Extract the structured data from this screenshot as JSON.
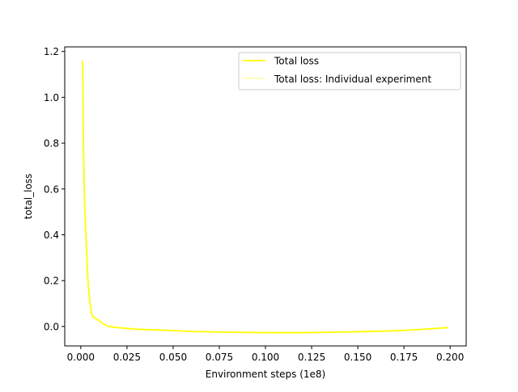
{
  "chart_data": {
    "type": "line",
    "xlabel": "Environment steps (1e8)",
    "ylabel": "total_loss",
    "xlim": [
      -0.0087,
      0.2087
    ],
    "ylim": [
      -0.085,
      1.22
    ],
    "x_ticks": [
      0.0,
      0.025,
      0.05,
      0.075,
      0.1,
      0.125,
      0.15,
      0.175,
      0.2
    ],
    "x_tick_labels": [
      "0.000",
      "0.025",
      "0.050",
      "0.075",
      "0.100",
      "0.125",
      "0.150",
      "0.175",
      "0.200"
    ],
    "y_ticks": [
      0.0,
      0.2,
      0.4,
      0.6,
      0.8,
      1.0,
      1.2
    ],
    "y_tick_labels": [
      "0.0",
      "0.2",
      "0.4",
      "0.6",
      "0.8",
      "1.0",
      "1.2"
    ],
    "grid": false,
    "legend_position": "top-right",
    "series": [
      {
        "name": "Total loss",
        "color": "#ffff00",
        "x": [
          0.001,
          0.0015,
          0.002,
          0.003,
          0.004,
          0.005,
          0.006,
          0.007,
          0.008,
          0.01,
          0.012,
          0.015,
          0.02,
          0.03,
          0.05,
          0.06,
          0.08,
          0.1,
          0.12,
          0.13,
          0.15,
          0.17,
          0.18,
          0.19,
          0.199
        ],
        "y": [
          1.16,
          0.75,
          0.55,
          0.35,
          0.18,
          0.1,
          0.05,
          0.04,
          0.035,
          0.025,
          0.012,
          0.0,
          -0.005,
          -0.012,
          -0.018,
          -0.022,
          -0.025,
          -0.027,
          -0.027,
          -0.026,
          -0.023,
          -0.019,
          -0.015,
          -0.01,
          -0.005
        ]
      },
      {
        "name": "Total loss: Individual experiment",
        "color": "#ffff00",
        "alpha": 0.4,
        "x": [
          0.001,
          0.0015,
          0.002,
          0.003,
          0.004,
          0.005,
          0.006,
          0.007,
          0.008,
          0.01,
          0.012,
          0.015,
          0.02,
          0.03,
          0.05,
          0.06,
          0.08,
          0.1,
          0.12,
          0.13,
          0.15,
          0.17,
          0.18,
          0.19,
          0.199
        ],
        "y": [
          1.16,
          0.75,
          0.55,
          0.35,
          0.18,
          0.1,
          0.05,
          0.04,
          0.035,
          0.025,
          0.012,
          0.0,
          -0.005,
          -0.012,
          -0.018,
          -0.022,
          -0.025,
          -0.027,
          -0.027,
          -0.026,
          -0.023,
          -0.019,
          -0.015,
          -0.01,
          -0.005
        ]
      }
    ]
  }
}
